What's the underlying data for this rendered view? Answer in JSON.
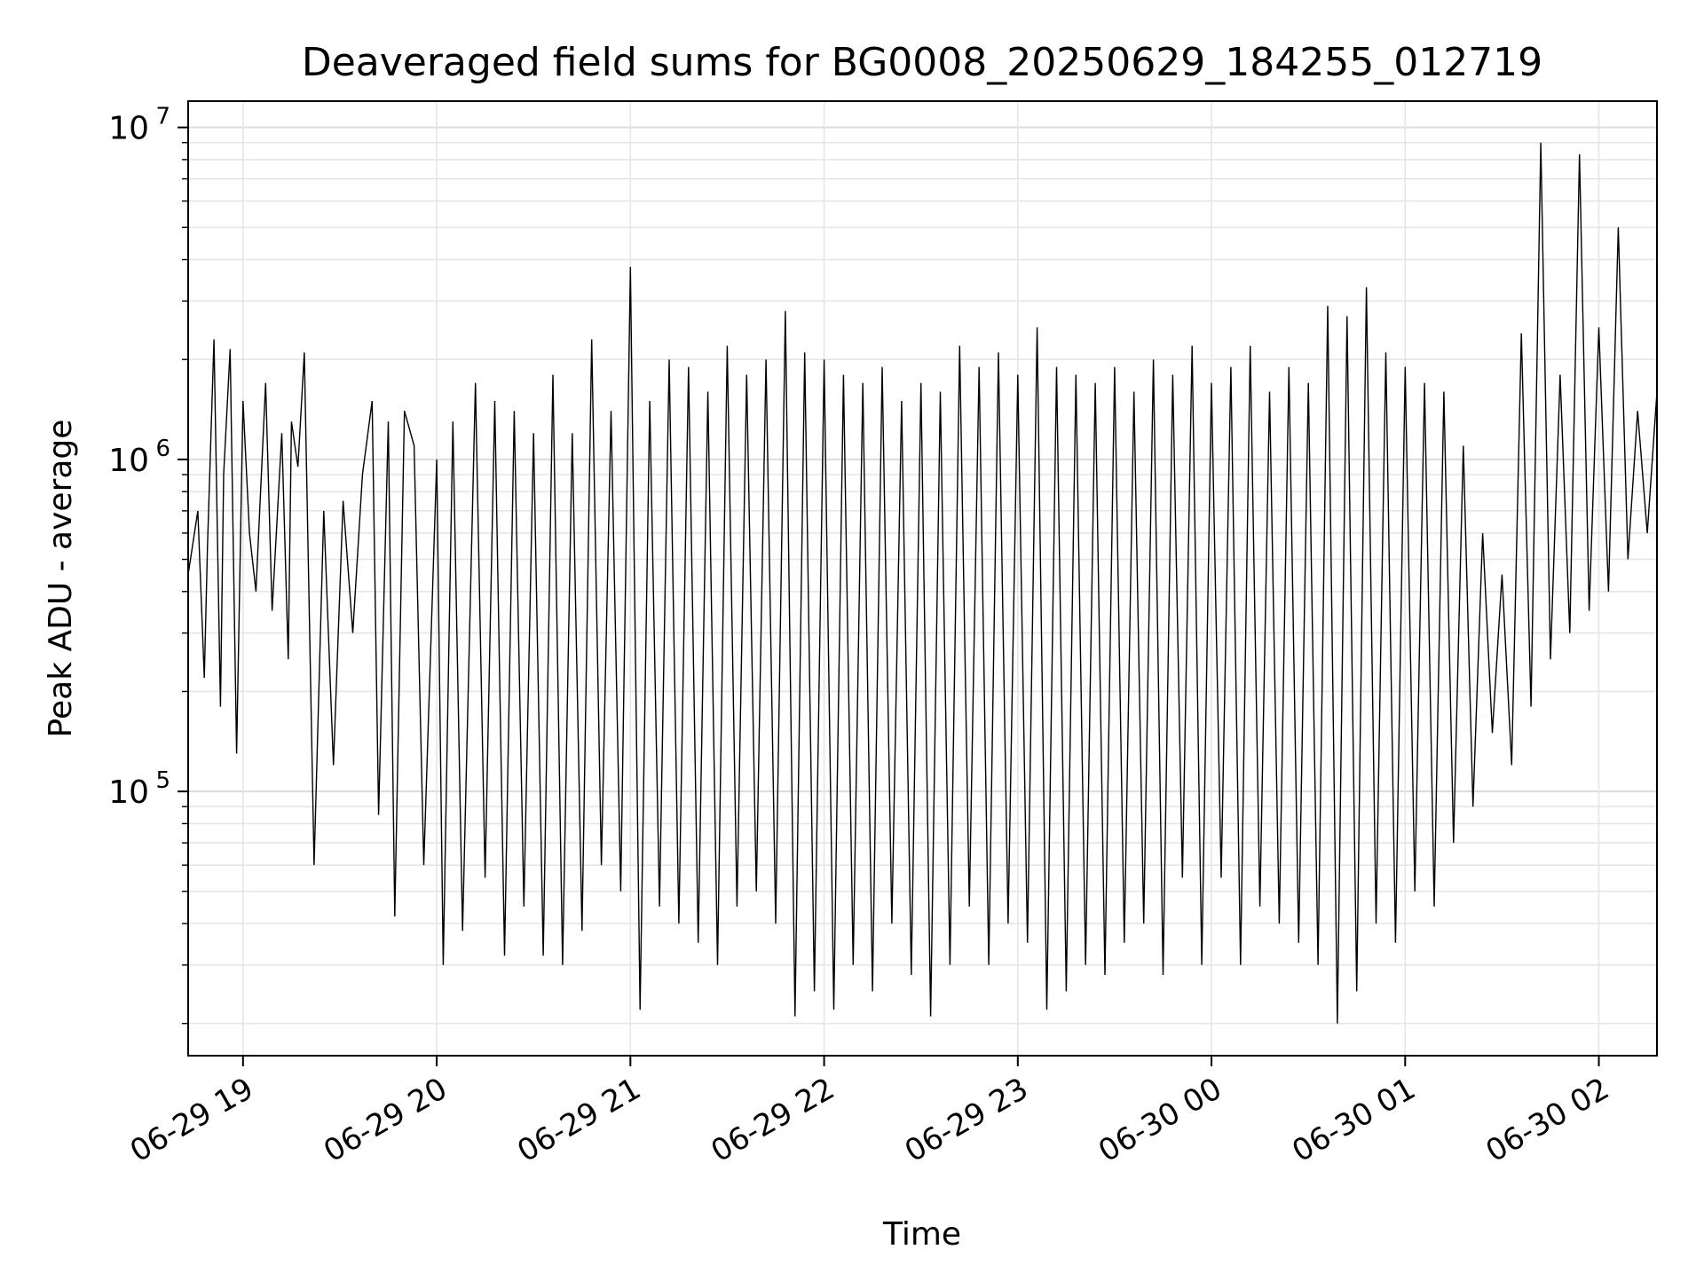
{
  "chart_data": {
    "type": "line",
    "title": "Deaveraged field sums for BG0008_20250629_184255_012719",
    "xlabel": "Time",
    "ylabel": "Peak ADU - average",
    "yscale": "log",
    "ylim": [
      16000,
      12000000
    ],
    "xlim": [
      "2025-06-29 18:43",
      "2025-06-30 02:18"
    ],
    "x_ticks": [
      {
        "t": "2025-06-29 19:00",
        "label": "06-29 19"
      },
      {
        "t": "2025-06-29 20:00",
        "label": "06-29 20"
      },
      {
        "t": "2025-06-29 21:00",
        "label": "06-29 21"
      },
      {
        "t": "2025-06-29 22:00",
        "label": "06-29 22"
      },
      {
        "t": "2025-06-29 23:00",
        "label": "06-29 23"
      },
      {
        "t": "2025-06-30 00:00",
        "label": "06-30 00"
      },
      {
        "t": "2025-06-30 01:00",
        "label": "06-30 01"
      },
      {
        "t": "2025-06-30 02:00",
        "label": "06-30 02"
      }
    ],
    "y_ticks": [
      {
        "value": 100000,
        "base": "10",
        "exp": "5"
      },
      {
        "value": 1000000,
        "base": "10",
        "exp": "6"
      },
      {
        "value": 10000000,
        "base": "10",
        "exp": "7"
      }
    ],
    "grid": true,
    "series_color": "#000000",
    "series": [
      {
        "x": [
          "2025-06-29 18:43",
          "2025-06-29 18:46",
          "2025-06-29 18:48",
          "2025-06-29 18:49",
          "2025-06-29 18:51",
          "2025-06-29 18:53",
          "2025-06-29 18:54",
          "2025-06-29 18:56",
          "2025-06-29 18:58",
          "2025-06-29 19:00",
          "2025-06-29 19:02",
          "2025-06-29 19:04",
          "2025-06-29 19:07",
          "2025-06-29 19:09",
          "2025-06-29 19:12",
          "2025-06-29 19:14",
          "2025-06-29 19:15",
          "2025-06-29 19:17",
          "2025-06-29 19:19",
          "2025-06-29 19:22",
          "2025-06-29 19:25",
          "2025-06-29 19:28",
          "2025-06-29 19:31",
          "2025-06-29 19:34",
          "2025-06-29 19:37",
          "2025-06-29 19:40",
          "2025-06-29 19:42",
          "2025-06-29 19:45",
          "2025-06-29 19:47",
          "2025-06-29 19:50",
          "2025-06-29 19:53",
          "2025-06-29 19:56",
          "2025-06-29 20:00",
          "2025-06-29 20:02",
          "2025-06-29 20:05",
          "2025-06-29 20:08",
          "2025-06-29 20:12",
          "2025-06-29 20:15",
          "2025-06-29 20:18",
          "2025-06-29 20:21",
          "2025-06-29 20:24",
          "2025-06-29 20:27",
          "2025-06-29 20:30",
          "2025-06-29 20:33",
          "2025-06-29 20:36",
          "2025-06-29 20:39",
          "2025-06-29 20:42",
          "2025-06-29 20:45",
          "2025-06-29 20:48",
          "2025-06-29 20:51",
          "2025-06-29 20:54",
          "2025-06-29 20:57",
          "2025-06-29 21:00",
          "2025-06-29 21:03",
          "2025-06-29 21:06",
          "2025-06-29 21:09",
          "2025-06-29 21:12",
          "2025-06-29 21:15",
          "2025-06-29 21:18",
          "2025-06-29 21:21",
          "2025-06-29 21:24",
          "2025-06-29 21:27",
          "2025-06-29 21:30",
          "2025-06-29 21:33",
          "2025-06-29 21:36",
          "2025-06-29 21:39",
          "2025-06-29 21:42",
          "2025-06-29 21:45",
          "2025-06-29 21:48",
          "2025-06-29 21:51",
          "2025-06-29 21:54",
          "2025-06-29 21:57",
          "2025-06-29 22:00",
          "2025-06-29 22:03",
          "2025-06-29 22:06",
          "2025-06-29 22:09",
          "2025-06-29 22:12",
          "2025-06-29 22:15",
          "2025-06-29 22:18",
          "2025-06-29 22:21",
          "2025-06-29 22:24",
          "2025-06-29 22:27",
          "2025-06-29 22:30",
          "2025-06-29 22:33",
          "2025-06-29 22:36",
          "2025-06-29 22:39",
          "2025-06-29 22:42",
          "2025-06-29 22:45",
          "2025-06-29 22:48",
          "2025-06-29 22:51",
          "2025-06-29 22:54",
          "2025-06-29 22:57",
          "2025-06-29 23:00",
          "2025-06-29 23:03",
          "2025-06-29 23:06",
          "2025-06-29 23:09",
          "2025-06-29 23:12",
          "2025-06-29 23:15",
          "2025-06-29 23:18",
          "2025-06-29 23:21",
          "2025-06-29 23:24",
          "2025-06-29 23:27",
          "2025-06-29 23:30",
          "2025-06-29 23:33",
          "2025-06-29 23:36",
          "2025-06-29 23:39",
          "2025-06-29 23:42",
          "2025-06-29 23:45",
          "2025-06-29 23:48",
          "2025-06-29 23:51",
          "2025-06-29 23:54",
          "2025-06-29 23:57",
          "2025-06-30 00:00",
          "2025-06-30 00:03",
          "2025-06-30 00:06",
          "2025-06-30 00:09",
          "2025-06-30 00:12",
          "2025-06-30 00:15",
          "2025-06-30 00:18",
          "2025-06-30 00:21",
          "2025-06-30 00:24",
          "2025-06-30 00:27",
          "2025-06-30 00:30",
          "2025-06-30 00:33",
          "2025-06-30 00:36",
          "2025-06-30 00:39",
          "2025-06-30 00:42",
          "2025-06-30 00:45",
          "2025-06-30 00:48",
          "2025-06-30 00:51",
          "2025-06-30 00:54",
          "2025-06-30 00:57",
          "2025-06-30 01:00",
          "2025-06-30 01:03",
          "2025-06-30 01:06",
          "2025-06-30 01:09",
          "2025-06-30 01:12",
          "2025-06-30 01:15",
          "2025-06-30 01:18",
          "2025-06-30 01:21",
          "2025-06-30 01:24",
          "2025-06-30 01:27",
          "2025-06-30 01:30",
          "2025-06-30 01:33",
          "2025-06-30 01:36",
          "2025-06-30 01:39",
          "2025-06-30 01:42",
          "2025-06-30 01:45",
          "2025-06-30 01:48",
          "2025-06-30 01:51",
          "2025-06-30 01:54",
          "2025-06-30 01:57",
          "2025-06-30 02:00",
          "2025-06-30 02:03",
          "2025-06-30 02:06",
          "2025-06-30 02:09",
          "2025-06-30 02:12",
          "2025-06-30 02:15",
          "2025-06-30 02:18"
        ],
        "y": [
          450000,
          700000,
          220000,
          550000,
          2300000,
          180000,
          900000,
          2150000,
          130000,
          1500000,
          600000,
          400000,
          1700000,
          350000,
          1200000,
          250000,
          1300000,
          950000,
          2100000,
          60000,
          700000,
          120000,
          750000,
          300000,
          900000,
          1500000,
          85000,
          1300000,
          42000,
          1400000,
          1100000,
          60000,
          1000000,
          30000,
          1300000,
          38000,
          1700000,
          55000,
          1500000,
          32000,
          1400000,
          45000,
          1200000,
          32000,
          1800000,
          30000,
          1200000,
          38000,
          2300000,
          60000,
          1400000,
          50000,
          3800000,
          22000,
          1500000,
          45000,
          2000000,
          40000,
          1900000,
          35000,
          1600000,
          30000,
          2200000,
          45000,
          1800000,
          50000,
          2000000,
          40000,
          2800000,
          21000,
          2100000,
          25000,
          2000000,
          22000,
          1800000,
          30000,
          1700000,
          25000,
          1900000,
          40000,
          1500000,
          28000,
          1700000,
          21000,
          1600000,
          30000,
          2200000,
          45000,
          1900000,
          30000,
          2100000,
          40000,
          1800000,
          35000,
          2500000,
          22000,
          1900000,
          25000,
          1800000,
          30000,
          1700000,
          28000,
          1900000,
          35000,
          1600000,
          40000,
          2000000,
          28000,
          1800000,
          55000,
          2200000,
          30000,
          1700000,
          55000,
          1900000,
          30000,
          2200000,
          45000,
          1600000,
          40000,
          1900000,
          35000,
          1700000,
          30000,
          2900000,
          20000,
          2700000,
          25000,
          3300000,
          40000,
          2100000,
          35000,
          1900000,
          50000,
          1700000,
          45000,
          1600000,
          70000,
          1100000,
          90000,
          600000,
          150000,
          450000,
          120000,
          2400000,
          180000,
          9000000,
          250000,
          1800000,
          300000,
          8300000,
          350000,
          2500000,
          400000,
          5000000,
          500000,
          1400000,
          600000,
          1600000
        ]
      }
    ]
  }
}
